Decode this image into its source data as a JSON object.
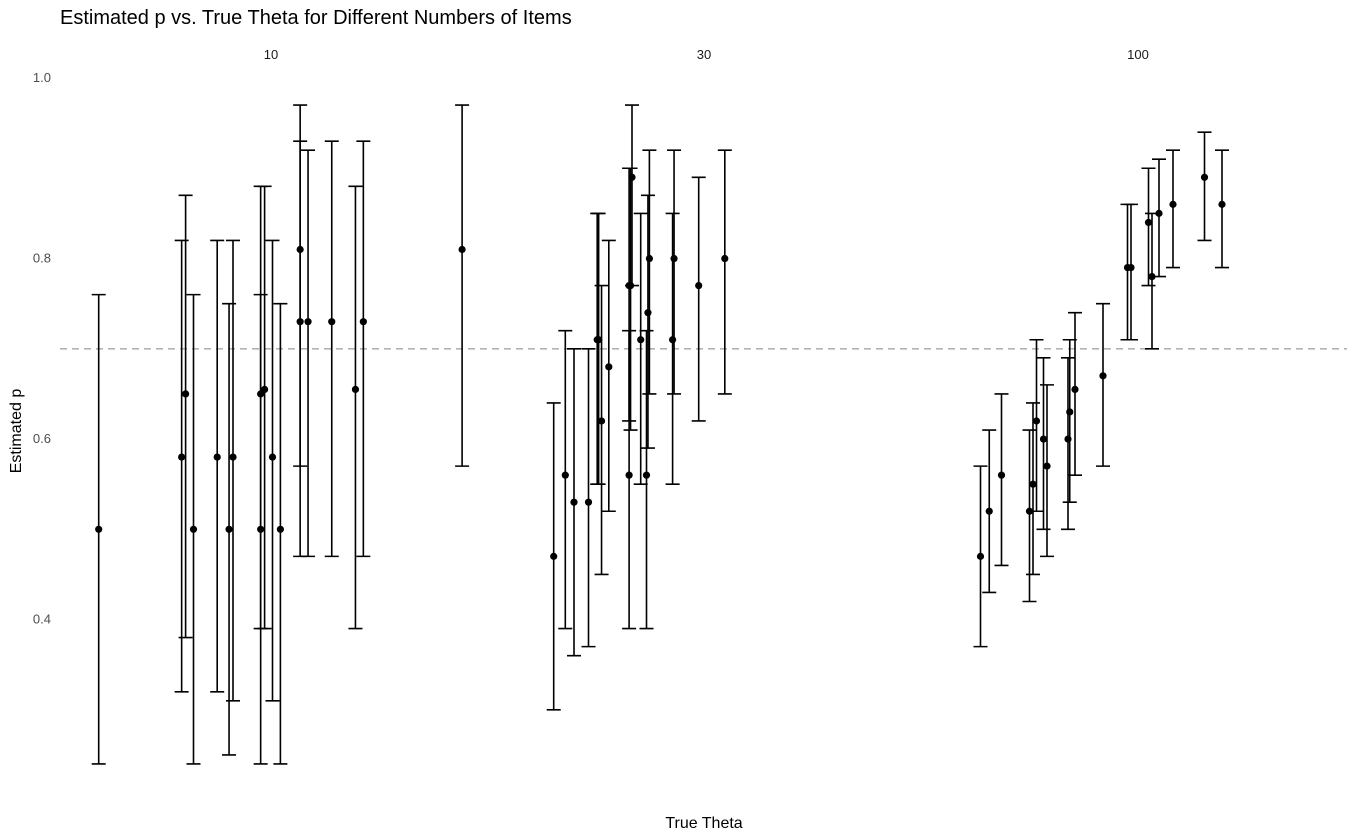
{
  "chart_data": {
    "type": "scatter",
    "title": "Estimated p vs. True Theta for Different Numbers of Items",
    "xlabel": "True Theta",
    "ylabel": "Estimated p",
    "facets": [
      "10",
      "30",
      "100"
    ],
    "y_ticks": [
      0.4,
      0.6,
      0.8,
      1.0
    ],
    "y_tick_labels": [
      "0.4",
      "0.6",
      "0.8",
      "1.0"
    ],
    "ylim": [
      0.23,
      1.0
    ],
    "x_ticks_shown": false,
    "grid": false,
    "reference_line": {
      "y": 0.7,
      "style": "dashed",
      "color": "#b3b3b3"
    },
    "panels": [
      {
        "facet": "10",
        "x_domain": [
          0,
          1
        ],
        "points": [
          {
            "x": 0.06,
            "y": 0.5,
            "lo": 0.24,
            "hi": 0.76
          },
          {
            "x": 0.27,
            "y": 0.58,
            "lo": 0.32,
            "hi": 0.82
          },
          {
            "x": 0.28,
            "y": 0.65,
            "lo": 0.38,
            "hi": 0.87
          },
          {
            "x": 0.3,
            "y": 0.5,
            "lo": 0.24,
            "hi": 0.76
          },
          {
            "x": 0.36,
            "y": 0.58,
            "lo": 0.32,
            "hi": 0.82
          },
          {
            "x": 0.39,
            "y": 0.5,
            "lo": 0.25,
            "hi": 0.75
          },
          {
            "x": 0.4,
            "y": 0.58,
            "lo": 0.31,
            "hi": 0.82
          },
          {
            "x": 0.47,
            "y": 0.5,
            "lo": 0.24,
            "hi": 0.76
          },
          {
            "x": 0.47,
            "y": 0.65,
            "lo": 0.39,
            "hi": 0.88
          },
          {
            "x": 0.48,
            "y": 0.655,
            "lo": 0.39,
            "hi": 0.88
          },
          {
            "x": 0.5,
            "y": 0.58,
            "lo": 0.31,
            "hi": 0.82
          },
          {
            "x": 0.52,
            "y": 0.5,
            "lo": 0.24,
            "hi": 0.75
          },
          {
            "x": 0.57,
            "y": 0.73,
            "lo": 0.47,
            "hi": 0.93
          },
          {
            "x": 0.57,
            "y": 0.81,
            "lo": 0.57,
            "hi": 0.97
          },
          {
            "x": 0.59,
            "y": 0.73,
            "lo": 0.47,
            "hi": 0.92
          },
          {
            "x": 0.65,
            "y": 0.73,
            "lo": 0.47,
            "hi": 0.93
          },
          {
            "x": 0.71,
            "y": 0.655,
            "lo": 0.39,
            "hi": 0.88
          },
          {
            "x": 0.73,
            "y": 0.73,
            "lo": 0.47,
            "hi": 0.93
          },
          {
            "x": 0.98,
            "y": 0.81,
            "lo": 0.57,
            "hi": 0.97
          }
        ]
      },
      {
        "facet": "30",
        "x_domain": [
          0,
          1
        ],
        "points": [
          {
            "x": 0.03,
            "y": 0.47,
            "lo": 0.3,
            "hi": 0.64
          },
          {
            "x": 0.07,
            "y": 0.56,
            "lo": 0.39,
            "hi": 0.72
          },
          {
            "x": 0.1,
            "y": 0.53,
            "lo": 0.36,
            "hi": 0.7
          },
          {
            "x": 0.15,
            "y": 0.53,
            "lo": 0.37,
            "hi": 0.7
          },
          {
            "x": 0.18,
            "y": 0.71,
            "lo": 0.55,
            "hi": 0.85
          },
          {
            "x": 0.185,
            "y": 0.71,
            "lo": 0.55,
            "hi": 0.85
          },
          {
            "x": 0.195,
            "y": 0.62,
            "lo": 0.45,
            "hi": 0.77
          },
          {
            "x": 0.22,
            "y": 0.68,
            "lo": 0.52,
            "hi": 0.82
          },
          {
            "x": 0.29,
            "y": 0.56,
            "lo": 0.39,
            "hi": 0.72
          },
          {
            "x": 0.29,
            "y": 0.77,
            "lo": 0.62,
            "hi": 0.9
          },
          {
            "x": 0.295,
            "y": 0.77,
            "lo": 0.61,
            "hi": 0.9
          },
          {
            "x": 0.3,
            "y": 0.89,
            "lo": 0.77,
            "hi": 0.97
          },
          {
            "x": 0.33,
            "y": 0.71,
            "lo": 0.55,
            "hi": 0.85
          },
          {
            "x": 0.35,
            "y": 0.56,
            "lo": 0.39,
            "hi": 0.72
          },
          {
            "x": 0.355,
            "y": 0.74,
            "lo": 0.59,
            "hi": 0.87
          },
          {
            "x": 0.36,
            "y": 0.8,
            "lo": 0.65,
            "hi": 0.92
          },
          {
            "x": 0.44,
            "y": 0.71,
            "lo": 0.55,
            "hi": 0.85
          },
          {
            "x": 0.445,
            "y": 0.8,
            "lo": 0.65,
            "hi": 0.92
          },
          {
            "x": 0.53,
            "y": 0.77,
            "lo": 0.62,
            "hi": 0.89
          },
          {
            "x": 0.62,
            "y": 0.8,
            "lo": 0.65,
            "hi": 0.92
          }
        ]
      },
      {
        "facet": "100",
        "x_domain": [
          0,
          1
        ],
        "points": [
          {
            "x": 0.05,
            "y": 0.47,
            "lo": 0.37,
            "hi": 0.57
          },
          {
            "x": 0.075,
            "y": 0.52,
            "lo": 0.43,
            "hi": 0.61
          },
          {
            "x": 0.11,
            "y": 0.56,
            "lo": 0.46,
            "hi": 0.65
          },
          {
            "x": 0.19,
            "y": 0.52,
            "lo": 0.42,
            "hi": 0.61
          },
          {
            "x": 0.2,
            "y": 0.55,
            "lo": 0.45,
            "hi": 0.64
          },
          {
            "x": 0.21,
            "y": 0.62,
            "lo": 0.52,
            "hi": 0.71
          },
          {
            "x": 0.23,
            "y": 0.6,
            "lo": 0.5,
            "hi": 0.69
          },
          {
            "x": 0.24,
            "y": 0.57,
            "lo": 0.47,
            "hi": 0.66
          },
          {
            "x": 0.3,
            "y": 0.6,
            "lo": 0.5,
            "hi": 0.69
          },
          {
            "x": 0.305,
            "y": 0.63,
            "lo": 0.53,
            "hi": 0.71
          },
          {
            "x": 0.32,
            "y": 0.655,
            "lo": 0.56,
            "hi": 0.74
          },
          {
            "x": 0.4,
            "y": 0.67,
            "lo": 0.57,
            "hi": 0.75
          },
          {
            "x": 0.47,
            "y": 0.79,
            "lo": 0.71,
            "hi": 0.86
          },
          {
            "x": 0.48,
            "y": 0.79,
            "lo": 0.71,
            "hi": 0.86
          },
          {
            "x": 0.53,
            "y": 0.84,
            "lo": 0.77,
            "hi": 0.9
          },
          {
            "x": 0.54,
            "y": 0.78,
            "lo": 0.7,
            "hi": 0.85
          },
          {
            "x": 0.56,
            "y": 0.85,
            "lo": 0.78,
            "hi": 0.91
          },
          {
            "x": 0.6,
            "y": 0.86,
            "lo": 0.79,
            "hi": 0.92
          },
          {
            "x": 0.69,
            "y": 0.89,
            "lo": 0.82,
            "hi": 0.94
          },
          {
            "x": 0.74,
            "y": 0.86,
            "lo": 0.79,
            "hi": 0.92
          }
        ]
      }
    ]
  }
}
